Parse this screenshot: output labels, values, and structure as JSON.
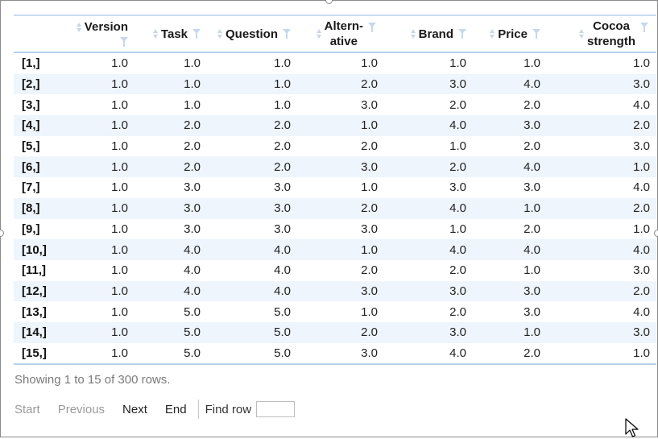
{
  "table": {
    "columns": [
      {
        "label": "",
        "sortable": false,
        "filter": false
      },
      {
        "label": "Version",
        "sortable": true,
        "filter": true
      },
      {
        "label": "Task",
        "sortable": true,
        "filter": true
      },
      {
        "label": "Question",
        "sortable": true,
        "filter": true
      },
      {
        "label": "Altern-\native",
        "sortable": true,
        "filter": true
      },
      {
        "label": "Brand",
        "sortable": true,
        "filter": true
      },
      {
        "label": "Price",
        "sortable": true,
        "filter": true
      },
      {
        "label": "Cocoa\nstrength",
        "sortable": true,
        "filter": true
      }
    ],
    "rows": [
      [
        "[1,]",
        "1.0",
        "1.0",
        "1.0",
        "1.0",
        "1.0",
        "1.0",
        "1.0"
      ],
      [
        "[2,]",
        "1.0",
        "1.0",
        "1.0",
        "2.0",
        "3.0",
        "4.0",
        "3.0"
      ],
      [
        "[3,]",
        "1.0",
        "1.0",
        "1.0",
        "3.0",
        "2.0",
        "2.0",
        "4.0"
      ],
      [
        "[4,]",
        "1.0",
        "2.0",
        "2.0",
        "1.0",
        "4.0",
        "3.0",
        "2.0"
      ],
      [
        "[5,]",
        "1.0",
        "2.0",
        "2.0",
        "2.0",
        "1.0",
        "2.0",
        "3.0"
      ],
      [
        "[6,]",
        "1.0",
        "2.0",
        "2.0",
        "3.0",
        "2.0",
        "4.0",
        "1.0"
      ],
      [
        "[7,]",
        "1.0",
        "3.0",
        "3.0",
        "1.0",
        "3.0",
        "3.0",
        "4.0"
      ],
      [
        "[8,]",
        "1.0",
        "3.0",
        "3.0",
        "2.0",
        "4.0",
        "1.0",
        "2.0"
      ],
      [
        "[9,]",
        "1.0",
        "3.0",
        "3.0",
        "3.0",
        "1.0",
        "2.0",
        "1.0"
      ],
      [
        "[10,]",
        "1.0",
        "4.0",
        "4.0",
        "1.0",
        "4.0",
        "4.0",
        "4.0"
      ],
      [
        "[11,]",
        "1.0",
        "4.0",
        "4.0",
        "2.0",
        "2.0",
        "1.0",
        "3.0"
      ],
      [
        "[12,]",
        "1.0",
        "4.0",
        "4.0",
        "3.0",
        "3.0",
        "3.0",
        "2.0"
      ],
      [
        "[13,]",
        "1.0",
        "5.0",
        "5.0",
        "1.0",
        "2.0",
        "3.0",
        "4.0"
      ],
      [
        "[14,]",
        "1.0",
        "5.0",
        "5.0",
        "2.0",
        "3.0",
        "1.0",
        "3.0"
      ],
      [
        "[15,]",
        "1.0",
        "5.0",
        "5.0",
        "3.0",
        "4.0",
        "2.0",
        "1.0"
      ]
    ]
  },
  "info_text": "Showing 1 to 15 of 300 rows.",
  "pagination": {
    "start_label": "Start",
    "previous_label": "Previous",
    "next_label": "Next",
    "end_label": "End",
    "find_row_label": "Find row",
    "find_row_value": ""
  },
  "colors": {
    "stripe": "#eef5fc",
    "rule": "#b8d0ea",
    "sort_icon": "#c9d7e6",
    "filter_icon": "#c6d8ec"
  },
  "icons": {
    "sort": "sort-arrows-icon",
    "filter": "filter-funnel-icon",
    "cursor": "mouse-pointer-icon"
  }
}
